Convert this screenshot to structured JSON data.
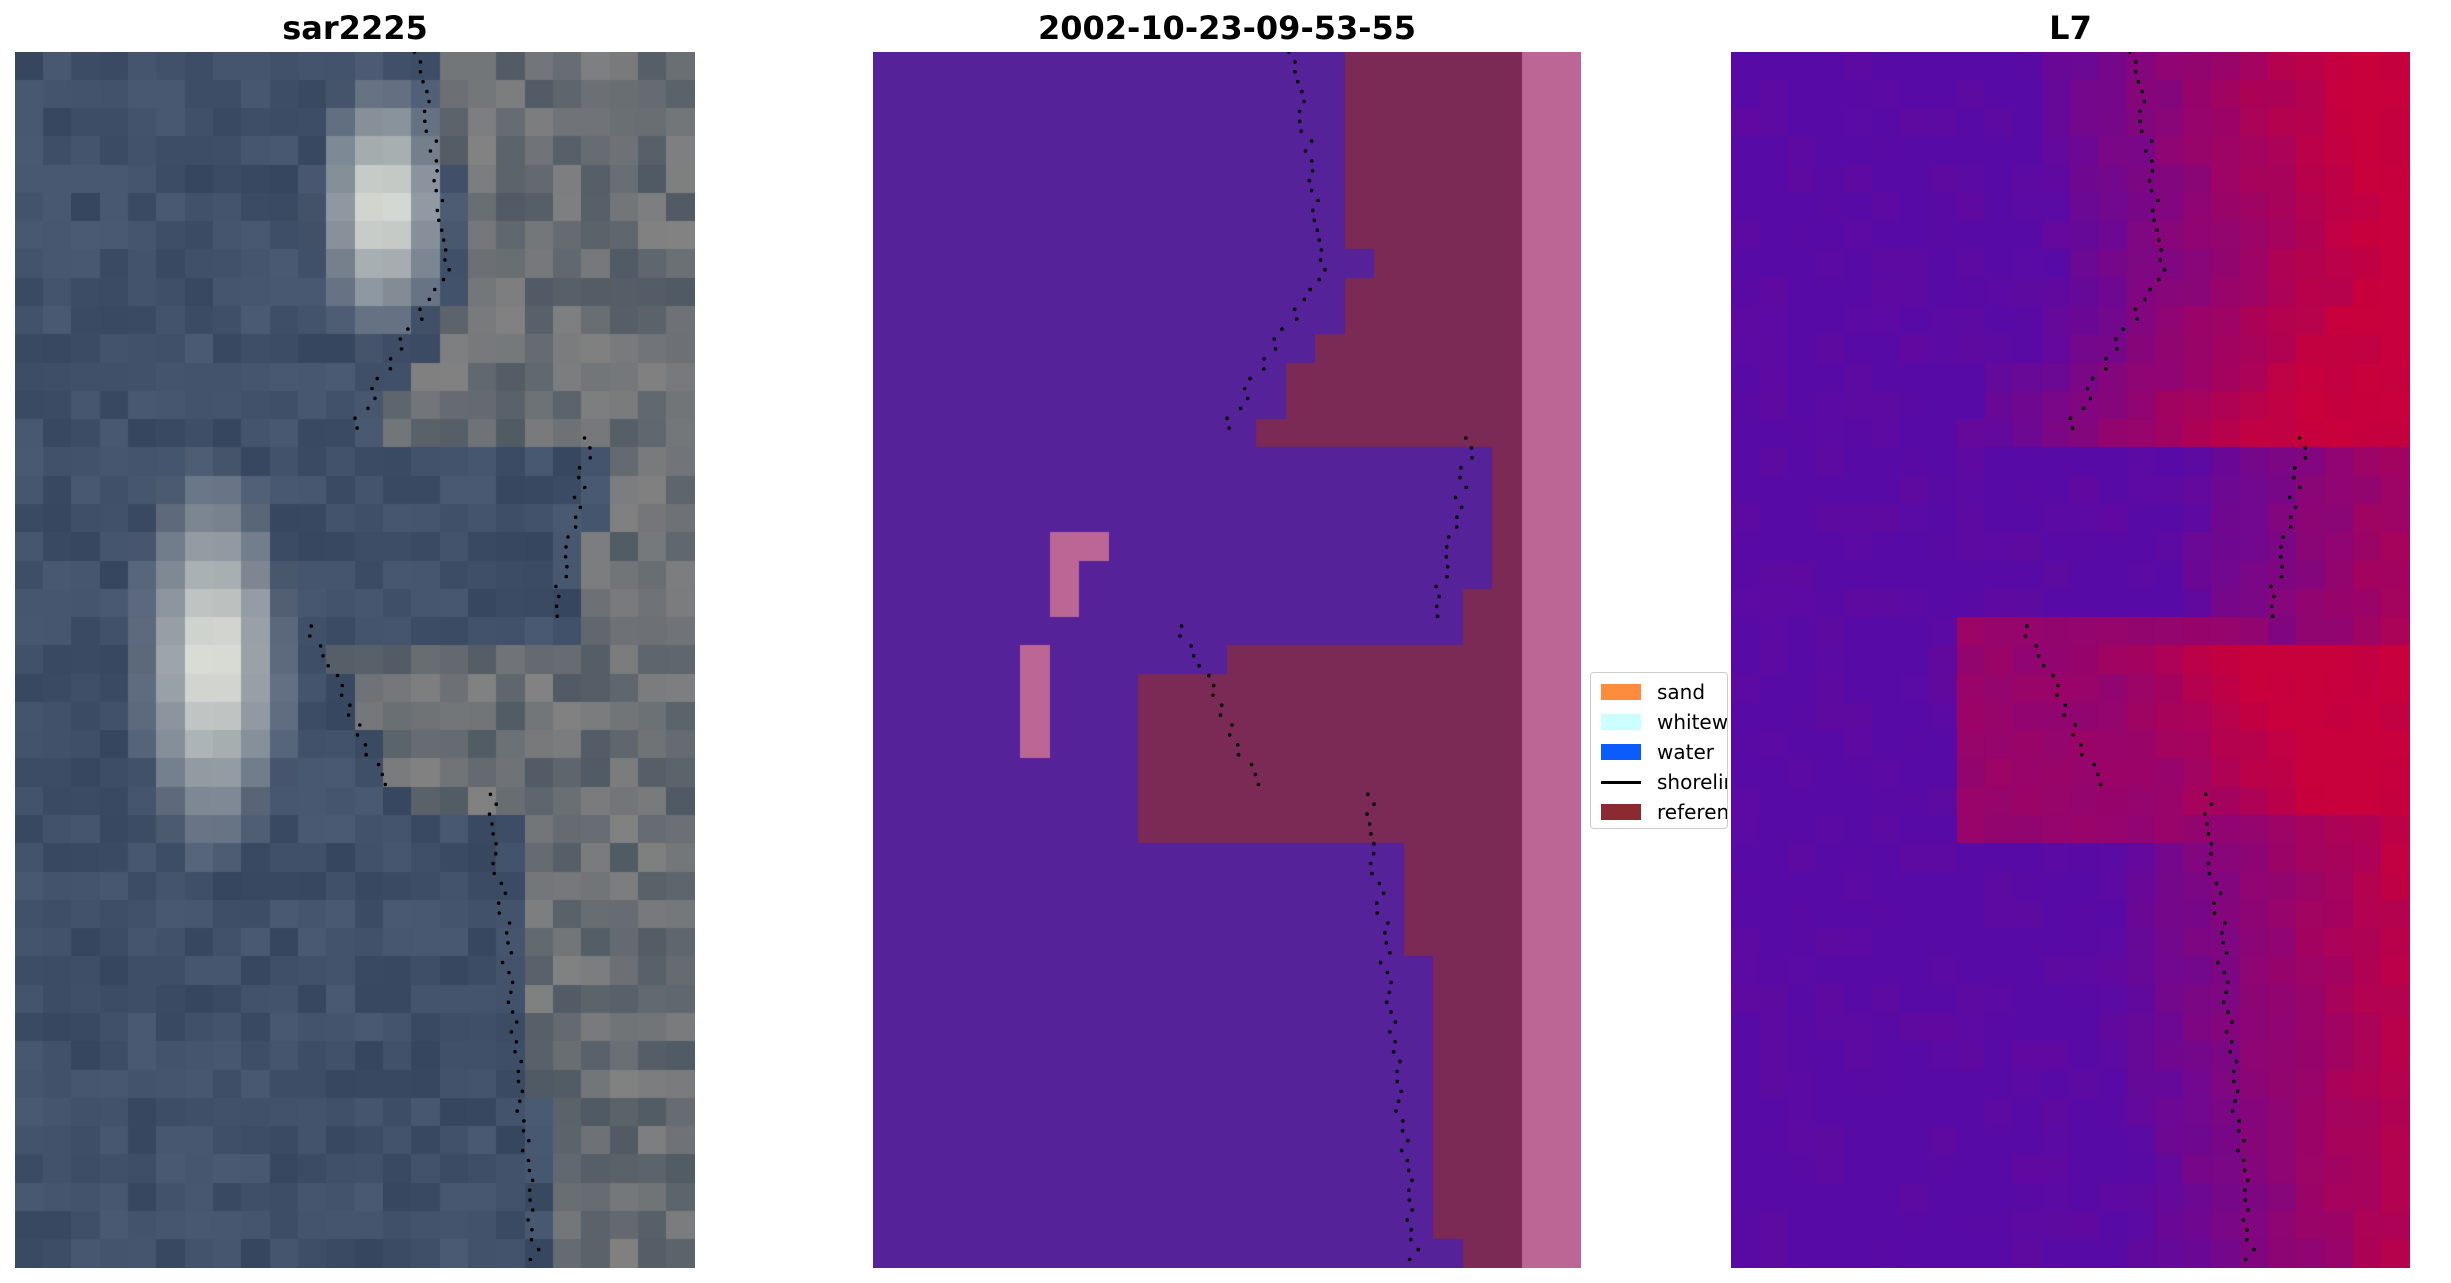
{
  "panels": [
    {
      "title": "sar2225"
    },
    {
      "title": "2002-10-23-09-53-55"
    },
    {
      "title": "L7"
    }
  ],
  "legend": {
    "items": [
      {
        "label": "sand",
        "color": "#ff8c3c",
        "kind": "patch"
      },
      {
        "label": "whitewater",
        "color": "#ccffff",
        "kind": "patch"
      },
      {
        "label": "water",
        "color": "#0a5cff",
        "kind": "patch"
      },
      {
        "label": "shoreline",
        "color": "#000000",
        "kind": "line"
      },
      {
        "label": "reference shoreline",
        "color": "#8b2a30",
        "kind": "patch"
      }
    ]
  },
  "colors": {
    "rgb_water": "#3b4a66",
    "classified_water": "#56229a",
    "classified_land": "#7b2955",
    "classified_edge": "#bb6694",
    "ndwi_low": "#5a0aa6",
    "ndwi_high": "#c8003c"
  }
}
